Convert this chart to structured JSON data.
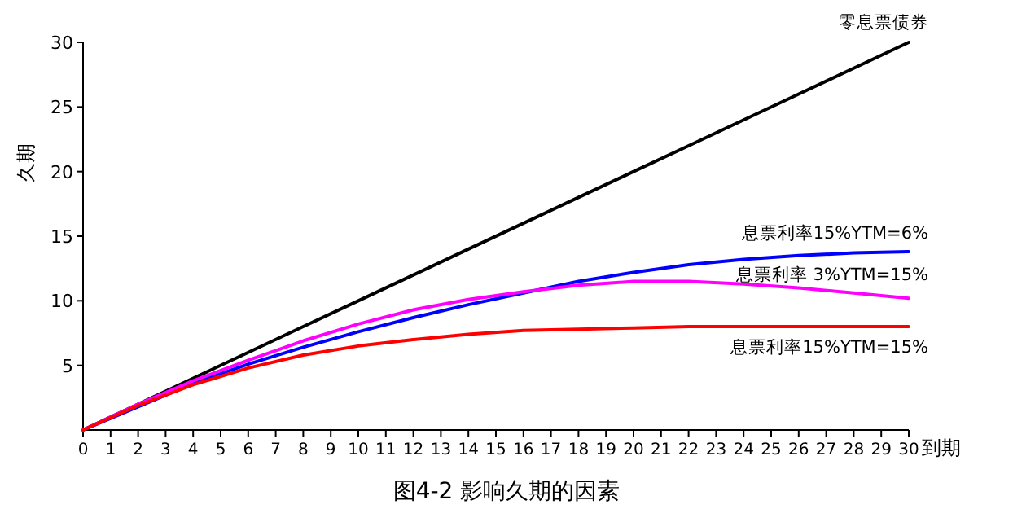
{
  "chart_data": {
    "type": "line",
    "title": "图4-2 影响久期的因素",
    "xlabel": "到期",
    "ylabel": "久期",
    "x": [
      0,
      2,
      4,
      6,
      8,
      10,
      12,
      14,
      16,
      18,
      20,
      22,
      24,
      26,
      28,
      30
    ],
    "series": [
      {
        "name": "零息票债券",
        "color": "#000000",
        "values": [
          0,
          2,
          4,
          6,
          8,
          10,
          12,
          14,
          16,
          18,
          20,
          22,
          24,
          26,
          28,
          30
        ]
      },
      {
        "name": "息票利率15%YTM=6%",
        "color": "#0000ff",
        "values": [
          0,
          null,
          3.6,
          5.1,
          6.4,
          7.6,
          8.7,
          9.7,
          10.6,
          11.5,
          12.2,
          12.8,
          13.2,
          13.5,
          13.7,
          13.8
        ]
      },
      {
        "name": "息票利率 3%YTM=15%",
        "color": "#ff00ff",
        "values": [
          0,
          2.0,
          3.8,
          5.4,
          6.9,
          8.2,
          9.3,
          10.1,
          10.7,
          11.2,
          11.5,
          11.5,
          11.3,
          11.0,
          10.6,
          10.2
        ]
      },
      {
        "name": "息票利率15%YTM=15%",
        "color": "#ff0000",
        "values": [
          0,
          1.9,
          3.5,
          4.8,
          5.8,
          6.5,
          7.0,
          7.4,
          7.7,
          7.8,
          7.9,
          8.0,
          8.0,
          8.0,
          8.0,
          8.0
        ]
      }
    ],
    "xlim": [
      0,
      30
    ],
    "ylim": [
      0,
      30
    ],
    "xticks": [
      0,
      1,
      2,
      3,
      4,
      5,
      6,
      7,
      8,
      9,
      10,
      11,
      12,
      13,
      14,
      15,
      16,
      17,
      18,
      19,
      20,
      21,
      22,
      23,
      24,
      25,
      26,
      27,
      28,
      29,
      30
    ],
    "yticks": [
      5,
      10,
      15,
      20,
      25,
      30
    ],
    "grid": false,
    "legend": false,
    "marker": "none",
    "line_style": "solid"
  }
}
